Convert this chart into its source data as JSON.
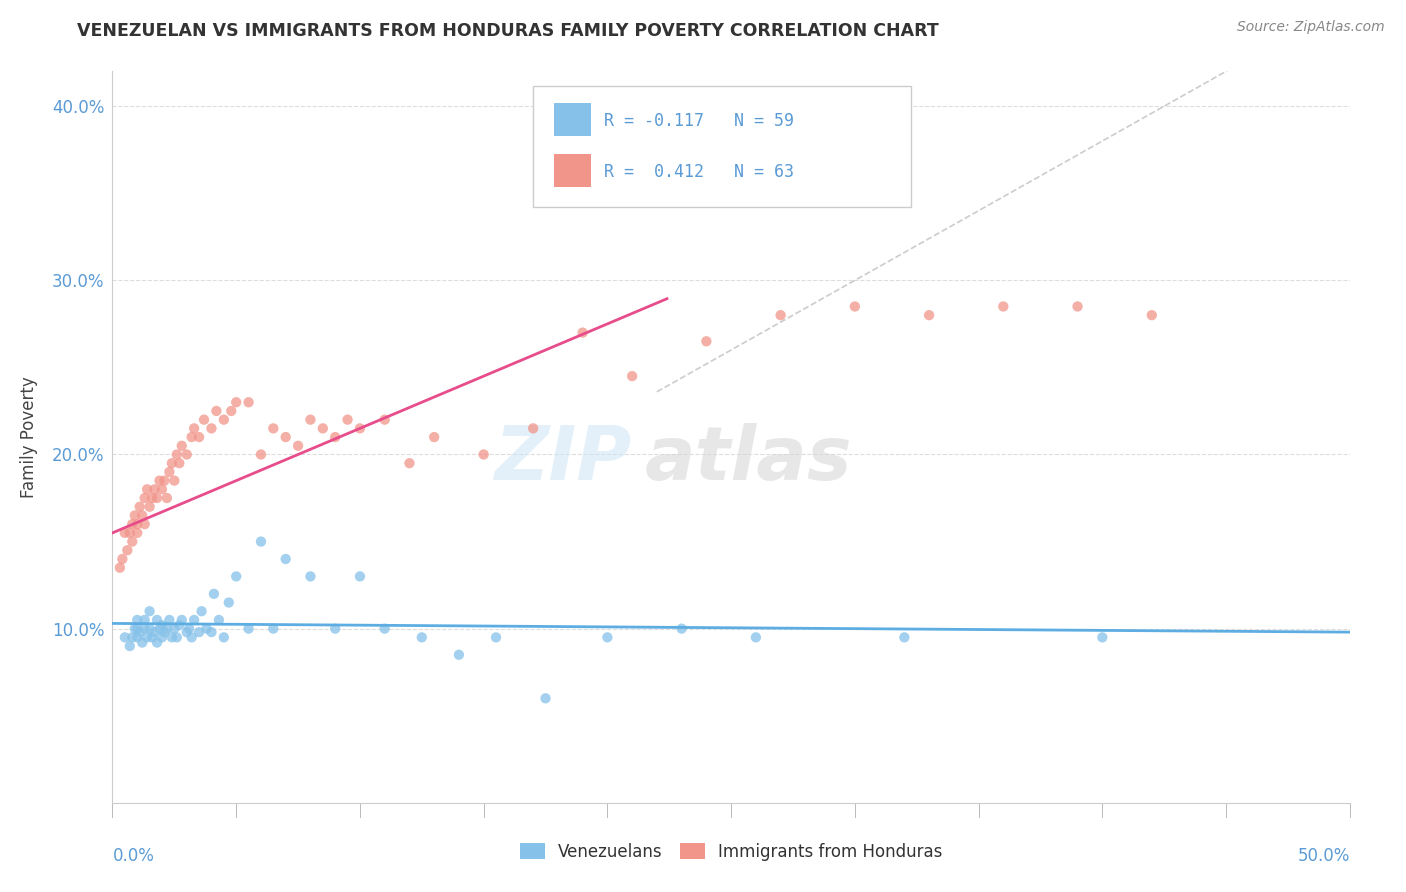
{
  "title": "VENEZUELAN VS IMMIGRANTS FROM HONDURAS FAMILY POVERTY CORRELATION CHART",
  "source": "Source: ZipAtlas.com",
  "ylabel": "Family Poverty",
  "xlim": [
    0.0,
    0.5
  ],
  "ylim": [
    0.0,
    0.42
  ],
  "yticks": [
    0.1,
    0.2,
    0.3,
    0.4
  ],
  "ytick_labels": [
    "10.0%",
    "20.0%",
    "30.0%",
    "40.0%"
  ],
  "color_blue": "#85c1e9",
  "color_pink": "#f1948a",
  "color_blue_line": "#5dade2",
  "color_pink_line": "#e74c8b",
  "background_color": "#ffffff",
  "venezuelan_x": [
    0.005,
    0.007,
    0.008,
    0.009,
    0.01,
    0.01,
    0.01,
    0.011,
    0.012,
    0.013,
    0.013,
    0.014,
    0.015,
    0.015,
    0.016,
    0.017,
    0.018,
    0.018,
    0.019,
    0.02,
    0.02,
    0.021,
    0.022,
    0.023,
    0.024,
    0.025,
    0.026,
    0.027,
    0.028,
    0.03,
    0.031,
    0.032,
    0.033,
    0.035,
    0.036,
    0.038,
    0.04,
    0.041,
    0.043,
    0.045,
    0.047,
    0.05,
    0.055,
    0.06,
    0.065,
    0.07,
    0.08,
    0.09,
    0.1,
    0.11,
    0.125,
    0.14,
    0.155,
    0.175,
    0.2,
    0.23,
    0.26,
    0.32,
    0.4
  ],
  "venezuelan_y": [
    0.095,
    0.09,
    0.095,
    0.1,
    0.095,
    0.1,
    0.105,
    0.098,
    0.092,
    0.1,
    0.105,
    0.095,
    0.1,
    0.11,
    0.095,
    0.098,
    0.105,
    0.092,
    0.1,
    0.095,
    0.102,
    0.098,
    0.1,
    0.105,
    0.095,
    0.1,
    0.095,
    0.102,
    0.105,
    0.098,
    0.1,
    0.095,
    0.105,
    0.098,
    0.11,
    0.1,
    0.098,
    0.12,
    0.105,
    0.095,
    0.115,
    0.13,
    0.1,
    0.15,
    0.1,
    0.14,
    0.13,
    0.1,
    0.13,
    0.1,
    0.095,
    0.085,
    0.095,
    0.06,
    0.095,
    0.1,
    0.095,
    0.095,
    0.095
  ],
  "honduras_x": [
    0.003,
    0.004,
    0.005,
    0.006,
    0.007,
    0.008,
    0.008,
    0.009,
    0.01,
    0.01,
    0.011,
    0.012,
    0.013,
    0.013,
    0.014,
    0.015,
    0.016,
    0.017,
    0.018,
    0.019,
    0.02,
    0.021,
    0.022,
    0.023,
    0.024,
    0.025,
    0.026,
    0.027,
    0.028,
    0.03,
    0.032,
    0.033,
    0.035,
    0.037,
    0.04,
    0.042,
    0.045,
    0.048,
    0.05,
    0.055,
    0.06,
    0.065,
    0.07,
    0.075,
    0.08,
    0.085,
    0.09,
    0.095,
    0.1,
    0.11,
    0.12,
    0.13,
    0.15,
    0.17,
    0.19,
    0.21,
    0.24,
    0.27,
    0.3,
    0.33,
    0.36,
    0.39,
    0.42
  ],
  "honduras_y": [
    0.135,
    0.14,
    0.155,
    0.145,
    0.155,
    0.15,
    0.16,
    0.165,
    0.155,
    0.16,
    0.17,
    0.165,
    0.16,
    0.175,
    0.18,
    0.17,
    0.175,
    0.18,
    0.175,
    0.185,
    0.18,
    0.185,
    0.175,
    0.19,
    0.195,
    0.185,
    0.2,
    0.195,
    0.205,
    0.2,
    0.21,
    0.215,
    0.21,
    0.22,
    0.215,
    0.225,
    0.22,
    0.225,
    0.23,
    0.23,
    0.2,
    0.215,
    0.21,
    0.205,
    0.22,
    0.215,
    0.21,
    0.22,
    0.215,
    0.22,
    0.195,
    0.21,
    0.2,
    0.215,
    0.27,
    0.245,
    0.265,
    0.28,
    0.285,
    0.28,
    0.285,
    0.285,
    0.28
  ]
}
